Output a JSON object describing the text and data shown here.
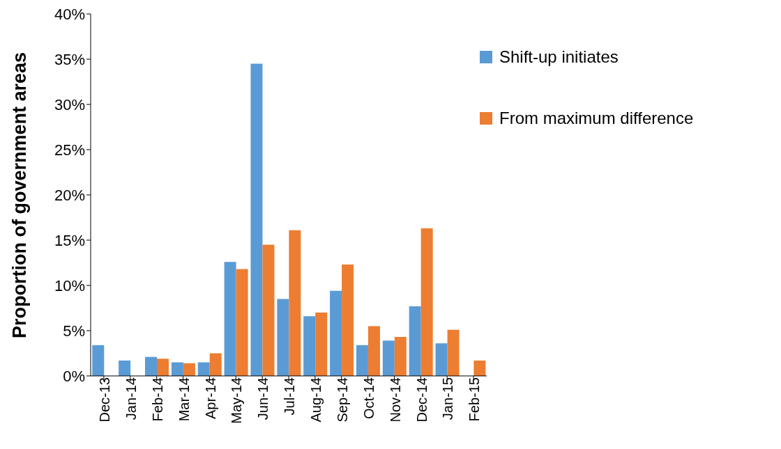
{
  "chart_data": {
    "type": "bar",
    "ylabel": "Proportion of government areas",
    "categories": [
      "Dec-13",
      "Jan-14",
      "Feb-14",
      "Mar-14",
      "Apr-14",
      "May-14",
      "Jun-14",
      "Jul-14",
      "Aug-14",
      "Sep-14",
      "Oct-14",
      "Nov-14",
      "Dec-14",
      "Jan-15",
      "Feb-15"
    ],
    "series": [
      {
        "name": "Shift-up initiates",
        "color": "#5b9bd5",
        "values": [
          3.4,
          1.7,
          2.1,
          1.5,
          1.5,
          12.6,
          34.5,
          8.5,
          6.6,
          9.4,
          3.4,
          3.9,
          7.7,
          3.6,
          null
        ]
      },
      {
        "name": "From maximum difference",
        "color": "#ed7d31",
        "values": [
          null,
          null,
          1.9,
          1.4,
          2.5,
          11.8,
          14.5,
          16.1,
          7.0,
          12.3,
          5.5,
          4.3,
          16.3,
          5.1,
          1.7
        ]
      }
    ],
    "ylim": [
      0,
      40
    ],
    "yticks": [
      {
        "value": 0,
        "label": "0%"
      },
      {
        "value": 5,
        "label": "5%"
      },
      {
        "value": 10,
        "label": "10%"
      },
      {
        "value": 15,
        "label": "15%"
      },
      {
        "value": 20,
        "label": "20%"
      },
      {
        "value": 25,
        "label": "25%"
      },
      {
        "value": 30,
        "label": "30%"
      },
      {
        "value": 35,
        "label": "35%"
      },
      {
        "value": 40,
        "label": "40%"
      }
    ],
    "grid": false,
    "legend": "top right"
  }
}
